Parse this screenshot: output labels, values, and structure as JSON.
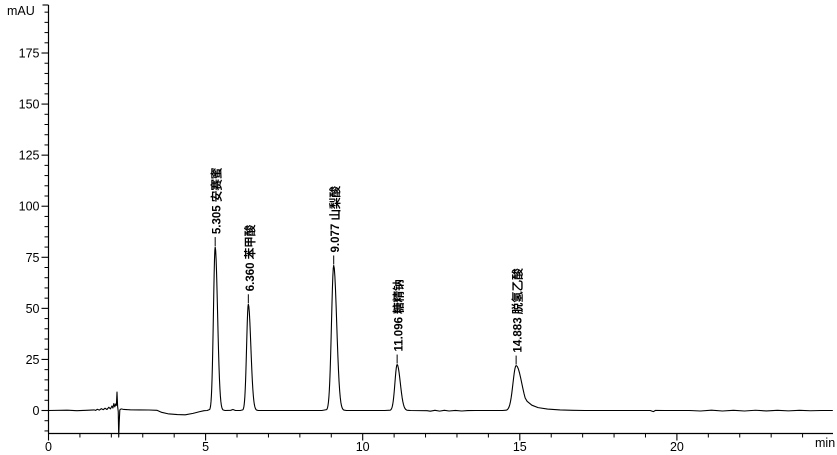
{
  "chart_data": {
    "type": "line",
    "title": "",
    "ylabel": "mAU",
    "xlabel": "min",
    "xlim_min": [
      0,
      25
    ],
    "ylim_mAU": [
      -13,
      198
    ],
    "x_major_ticks": [
      0,
      5,
      10,
      15,
      20
    ],
    "x_minor_step_min": 1,
    "y_major_ticks": [
      0,
      25,
      50,
      75,
      100,
      125,
      150,
      175
    ],
    "y_minor_step_mAU": 5,
    "grid": "off",
    "legend": "none",
    "trace_color": "#000000",
    "axis_color": "#000000",
    "background": "#ffffff",
    "peaks": [
      {
        "rt": "5.305",
        "name": "安赛蜜",
        "height_mAU": 80,
        "sigma_left_min": 0.055,
        "sigma_right_min": 0.075
      },
      {
        "rt": "6.360",
        "name": "苯甲酸",
        "height_mAU": 52,
        "sigma_left_min": 0.055,
        "sigma_right_min": 0.08
      },
      {
        "rt": "9.077",
        "name": "山梨酸",
        "height_mAU": 71,
        "sigma_left_min": 0.07,
        "sigma_right_min": 0.095
      },
      {
        "rt": "11.096",
        "name": "糖精钠",
        "height_mAU": 22.5,
        "sigma_left_min": 0.07,
        "sigma_right_min": 0.1
      },
      {
        "rt": "14.883",
        "name": "脱氢乙酸",
        "height_mAU": 22,
        "sigma_left_min": 0.1,
        "sigma_right_min": 0.18,
        "tail_points_min_mAU": [
          [
            0.35,
            4.5
          ],
          [
            0.5,
            2.6
          ],
          [
            0.7,
            1.4
          ],
          [
            1.0,
            0.7
          ],
          [
            1.4,
            0.3
          ],
          [
            1.8,
            0.1
          ],
          [
            2.2,
            0
          ]
        ]
      }
    ],
    "baseline_points_min_mAU": [
      [
        0,
        0
      ],
      [
        0.6,
        0.15
      ],
      [
        0.9,
        -0.1
      ],
      [
        1.2,
        0.1
      ],
      [
        1.45,
        0.3
      ],
      [
        1.5,
        0.05
      ],
      [
        1.55,
        0.6
      ],
      [
        1.62,
        0.2
      ],
      [
        1.68,
        0.9
      ],
      [
        1.74,
        0.4
      ],
      [
        1.8,
        1.1
      ],
      [
        1.86,
        0.5
      ],
      [
        1.92,
        1.6
      ],
      [
        1.97,
        0.8
      ],
      [
        2.02,
        2.2
      ],
      [
        2.05,
        1.2
      ],
      [
        2.08,
        3.4
      ],
      [
        2.11,
        1.8
      ],
      [
        2.14,
        3.2
      ],
      [
        2.16,
        2.5
      ],
      [
        2.18,
        9
      ],
      [
        2.2,
        2
      ],
      [
        2.22,
        -0.5
      ],
      [
        2.235,
        -13
      ],
      [
        2.25,
        -6
      ],
      [
        2.27,
        0.3
      ],
      [
        2.31,
        0.8
      ],
      [
        2.4,
        0.5
      ],
      [
        2.6,
        0.35
      ],
      [
        2.9,
        0.3
      ],
      [
        3.2,
        0.25
      ],
      [
        3.45,
        0.1
      ],
      [
        3.6,
        -0.9
      ],
      [
        3.8,
        -1.6
      ],
      [
        4.1,
        -2.0
      ],
      [
        4.35,
        -2.1
      ],
      [
        4.6,
        -1.4
      ],
      [
        4.8,
        -0.6
      ],
      [
        4.95,
        -0.1
      ],
      [
        5.05,
        0
      ],
      [
        5.62,
        0
      ],
      [
        5.8,
        0.1
      ],
      [
        5.87,
        0.5
      ],
      [
        5.95,
        0
      ],
      [
        6.1,
        0
      ],
      [
        6.68,
        0
      ],
      [
        7.2,
        0
      ],
      [
        8.0,
        0
      ],
      [
        8.7,
        0
      ],
      [
        9.48,
        0
      ],
      [
        10.0,
        0
      ],
      [
        10.7,
        0
      ],
      [
        11.52,
        0
      ],
      [
        12.05,
        -0.1
      ],
      [
        12.15,
        -0.35
      ],
      [
        12.3,
        0.1
      ],
      [
        12.45,
        -0.3
      ],
      [
        12.6,
        0.1
      ],
      [
        12.75,
        -0.25
      ],
      [
        12.95,
        0.05
      ],
      [
        13.15,
        -0.25
      ],
      [
        13.35,
        -0.05
      ],
      [
        13.6,
        0
      ],
      [
        14.1,
        0
      ],
      [
        14.45,
        0
      ],
      [
        17.3,
        0
      ],
      [
        18.2,
        0
      ],
      [
        19.15,
        0
      ],
      [
        19.25,
        -0.55
      ],
      [
        19.32,
        0.05
      ],
      [
        19.6,
        0
      ],
      [
        20.4,
        0
      ],
      [
        20.75,
        -0.25
      ],
      [
        21.1,
        0.15
      ],
      [
        21.45,
        -0.25
      ],
      [
        21.8,
        0.1
      ],
      [
        22.15,
        -0.25
      ],
      [
        22.5,
        0.12
      ],
      [
        22.85,
        -0.2
      ],
      [
        23.2,
        0.1
      ],
      [
        23.55,
        -0.18
      ],
      [
        23.9,
        0.08
      ],
      [
        24.25,
        -0.12
      ],
      [
        24.6,
        0
      ],
      [
        24.95,
        0
      ]
    ],
    "annotations": {
      "injection_spike": {
        "time_min": 2.24,
        "min_mAU": -13,
        "pre_bump_mAU": 9
      },
      "baseline_dip": {
        "from_min": 3.55,
        "to_min": 4.95,
        "depth_mAU": -2.1
      }
    }
  }
}
